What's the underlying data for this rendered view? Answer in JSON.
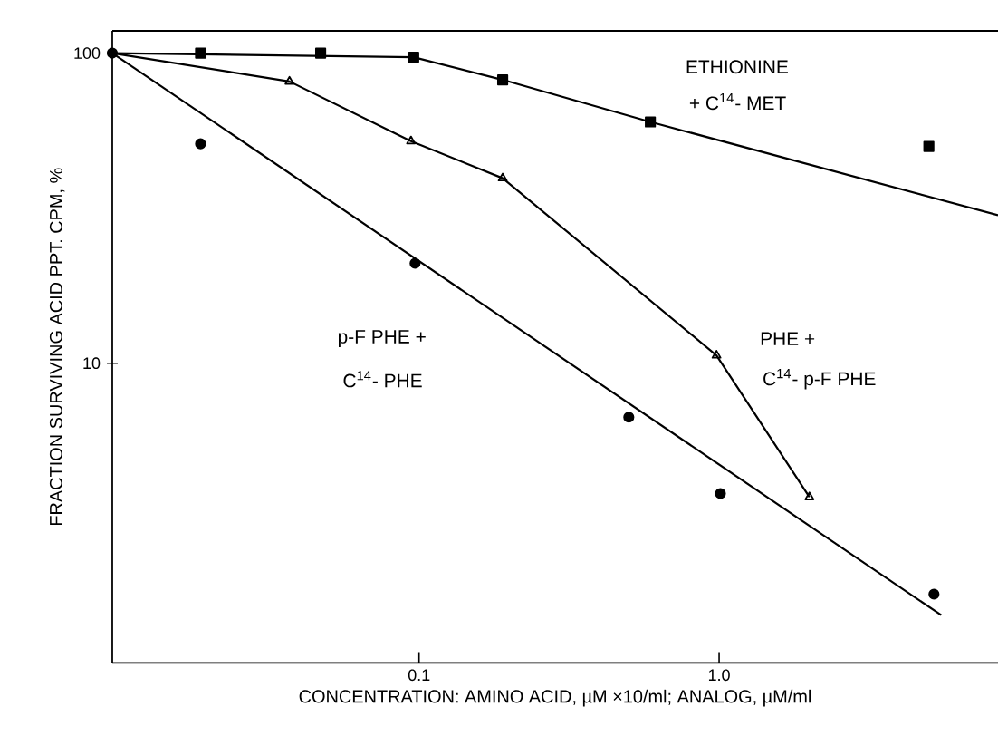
{
  "chart_data": {
    "type": "line",
    "xlabel": "CONCENTRATION: AMINO ACID, µM ×10/ml; ANALOG, µM/ml",
    "ylabel": "FRACTION SURVIVING ACID PPT. CPM, %",
    "log": "xy",
    "xlim": [
      0.0095,
      8.5
    ],
    "ylim": [
      1.08,
      118
    ],
    "xticks": [
      0.1,
      {
        "value": 1,
        "label": "1.0"
      }
    ],
    "yticks": [
      10,
      100
    ],
    "series": [
      {
        "type": "scatter",
        "marker": "square",
        "color": "#000000",
        "x": [
          0.0187,
          0.047,
          0.096,
          0.19,
          0.59,
          5.0
        ],
        "values": [
          100,
          100,
          97,
          82,
          60,
          50
        ]
      },
      {
        "marker": "none",
        "color": "#000000",
        "x": [
          0.0095,
          0.096,
          0.19,
          0.59,
          8.5
        ],
        "values": [
          100,
          97,
          82,
          60,
          30
        ]
      },
      {
        "marker": "none",
        "color": "#000000",
        "x": [
          0.0095,
          0.037,
          0.094,
          0.19,
          0.98,
          2.0
        ],
        "values": [
          100,
          81,
          52,
          39.5,
          10.6,
          3.7
        ]
      },
      {
        "type": "scatter",
        "marker": "triangle",
        "color": "#000000",
        "x": [
          0.037,
          0.094,
          0.19,
          0.98,
          2.0
        ],
        "values": [
          81,
          52,
          39.5,
          10.6,
          3.7
        ]
      },
      {
        "type": "scatter",
        "marker": "circle",
        "color": "#000000",
        "x": [
          0.0095,
          0.0187,
          0.097,
          0.5,
          1.01,
          5.2
        ],
        "values": [
          100,
          51,
          21,
          6.7,
          3.8,
          1.8
        ]
      },
      {
        "marker": "none",
        "color": "#000000",
        "x": [
          0.0095,
          5.5
        ],
        "values": [
          100,
          1.54
        ]
      }
    ],
    "annotations": [
      "ETHIONINE",
      "+ C$^{14}$- MET",
      "p-F PHE +",
      "C$^{14}$- PHE",
      "PHE +",
      "C$^{14}$- p-F PHE"
    ]
  }
}
